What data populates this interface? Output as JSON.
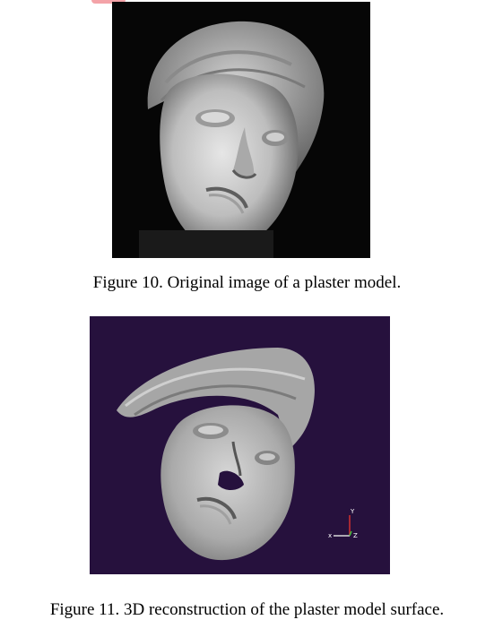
{
  "figures": [
    {
      "caption": "Figure 10.  Original image of a plaster model."
    },
    {
      "caption": "Figure 11.  3D reconstruction of the plaster model surface.",
      "axes": {
        "y": "Y",
        "x": "x",
        "z": "Z"
      }
    }
  ],
  "colors": {
    "photo_background": "#060606",
    "render_background": "#26113d",
    "plaster_light": "#dcdcdc",
    "plaster_shadow": "#5a5a5a",
    "axis_x": "#d9d9d9",
    "axis_y": "#d03030",
    "axis_z": "#40c040"
  }
}
